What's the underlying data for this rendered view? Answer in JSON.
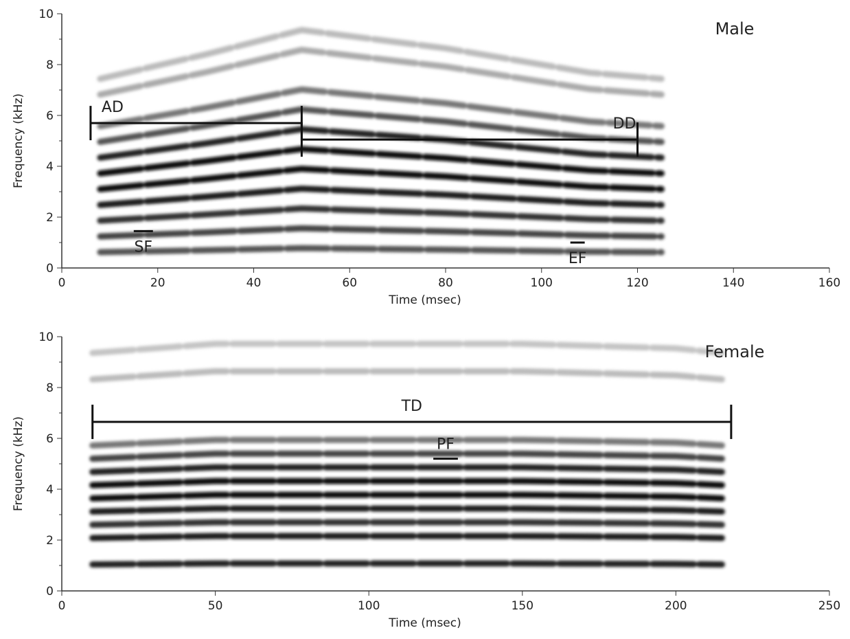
{
  "chart_data": [
    {
      "type": "spectrogram",
      "title": "Male",
      "xlabel": "Time (msec)",
      "ylabel": "Frequency (kHz)",
      "xlim": [
        0,
        160
      ],
      "xticks": [
        0,
        20,
        40,
        60,
        80,
        100,
        120,
        140,
        160
      ],
      "ylim": [
        0,
        10
      ],
      "yticks": [
        0,
        2,
        4,
        6,
        8,
        10
      ],
      "x": [
        8,
        30,
        50,
        80,
        110,
        125
      ],
      "series": [
        {
          "color": "#555555",
          "values": [
            0.62,
            0.7,
            0.78,
            0.72,
            0.64,
            0.62
          ]
        },
        {
          "color": "#444444",
          "values": [
            1.24,
            1.4,
            1.56,
            1.44,
            1.28,
            1.24
          ]
        },
        {
          "color": "#333333",
          "values": [
            1.86,
            2.1,
            2.34,
            2.16,
            1.92,
            1.86
          ]
        },
        {
          "color": "#1a1a1a",
          "values": [
            2.48,
            2.8,
            3.12,
            2.88,
            2.56,
            2.48
          ]
        },
        {
          "color": "#111111",
          "values": [
            3.1,
            3.5,
            3.9,
            3.6,
            3.2,
            3.1
          ]
        },
        {
          "color": "#111111",
          "values": [
            3.72,
            4.2,
            4.68,
            4.32,
            3.84,
            3.72
          ]
        },
        {
          "color": "#222222",
          "values": [
            4.34,
            4.9,
            5.46,
            5.04,
            4.48,
            4.34
          ]
        },
        {
          "color": "#555555",
          "values": [
            4.96,
            5.6,
            6.24,
            5.76,
            5.12,
            4.96
          ]
        },
        {
          "color": "#777777",
          "values": [
            5.58,
            6.3,
            7.02,
            6.48,
            5.76,
            5.58
          ]
        },
        {
          "color": "#aaaaaa",
          "values": [
            6.82,
            7.7,
            8.58,
            7.92,
            7.04,
            6.82
          ]
        },
        {
          "color": "#bbbbbb",
          "values": [
            7.44,
            8.4,
            9.36,
            8.64,
            7.68,
            7.44
          ]
        }
      ],
      "annotations": [
        {
          "label": "AD",
          "kind": "bracket",
          "x": [
            6,
            50
          ],
          "y": 5.7
        },
        {
          "label": "DD",
          "kind": "bracket",
          "x": [
            50,
            120
          ],
          "y": 5.05
        },
        {
          "label": "SF",
          "kind": "bar",
          "x": [
            15,
            19
          ],
          "y": 1.45
        },
        {
          "label": "EF",
          "kind": "bar",
          "x": [
            106,
            109
          ],
          "y": 1.0
        }
      ]
    },
    {
      "type": "spectrogram",
      "title": "Female",
      "xlabel": "Time (msec)",
      "ylabel": "Frequency (kHz)",
      "xlim": [
        0,
        250
      ],
      "xticks": [
        0,
        50,
        100,
        150,
        200,
        250
      ],
      "ylim": [
        0,
        10
      ],
      "yticks": [
        0,
        2,
        4,
        6,
        8,
        10
      ],
      "x": [
        10,
        50,
        100,
        150,
        200,
        215
      ],
      "series": [
        {
          "color": "#222222",
          "values": [
            1.04,
            1.08,
            1.08,
            1.08,
            1.06,
            1.04
          ]
        },
        {
          "color": "#1a1a1a",
          "values": [
            2.08,
            2.16,
            2.16,
            2.16,
            2.12,
            2.08
          ]
        },
        {
          "color": "#333333",
          "values": [
            2.6,
            2.7,
            2.7,
            2.7,
            2.65,
            2.6
          ]
        },
        {
          "color": "#1a1a1a",
          "values": [
            3.12,
            3.24,
            3.24,
            3.24,
            3.18,
            3.12
          ]
        },
        {
          "color": "#111111",
          "values": [
            3.64,
            3.78,
            3.78,
            3.78,
            3.71,
            3.64
          ]
        },
        {
          "color": "#111111",
          "values": [
            4.16,
            4.32,
            4.32,
            4.32,
            4.24,
            4.16
          ]
        },
        {
          "color": "#222222",
          "values": [
            4.68,
            4.86,
            4.86,
            4.86,
            4.77,
            4.68
          ]
        },
        {
          "color": "#444444",
          "values": [
            5.2,
            5.4,
            5.4,
            5.4,
            5.3,
            5.2
          ]
        },
        {
          "color": "#777777",
          "values": [
            5.72,
            5.94,
            5.94,
            5.94,
            5.83,
            5.72
          ]
        },
        {
          "color": "#bbbbbb",
          "values": [
            8.32,
            8.64,
            8.64,
            8.64,
            8.48,
            8.32
          ]
        },
        {
          "color": "#c4c4c4",
          "values": [
            9.36,
            9.72,
            9.72,
            9.72,
            9.54,
            9.36
          ]
        }
      ],
      "annotations": [
        {
          "label": "TD",
          "kind": "bracket",
          "x": [
            10,
            218
          ],
          "y": 6.65
        },
        {
          "label": "PF",
          "kind": "bar",
          "x": [
            121,
            129
          ],
          "y": 5.2
        }
      ]
    }
  ]
}
